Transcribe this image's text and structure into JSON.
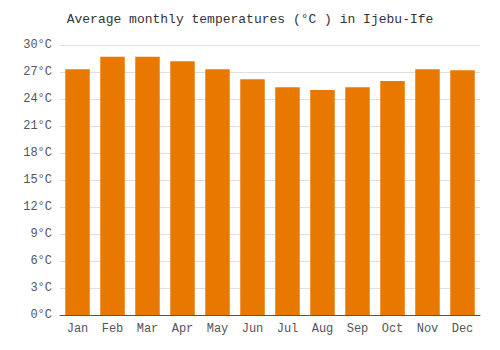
{
  "chart_data": {
    "type": "bar",
    "title": "Average monthly temperatures (°C ) in Ijebu-Ife",
    "categories": [
      "Jan",
      "Feb",
      "Mar",
      "Apr",
      "May",
      "Jun",
      "Jul",
      "Aug",
      "Sep",
      "Oct",
      "Nov",
      "Dec"
    ],
    "values": [
      27.3,
      28.7,
      28.7,
      28.2,
      27.3,
      26.2,
      25.3,
      25.0,
      25.3,
      26.0,
      27.3,
      27.2
    ],
    "color": "#E87800",
    "ylim": [
      0,
      30
    ],
    "yticks": [
      {
        "value": 0,
        "label": "0°C"
      },
      {
        "value": 3,
        "label": "3°C"
      },
      {
        "value": 6,
        "label": "6°C"
      },
      {
        "value": 9,
        "label": "9°C"
      },
      {
        "value": 12,
        "label": "12°C"
      },
      {
        "value": 15,
        "label": "15°C"
      },
      {
        "value": 18,
        "label": "18°C"
      },
      {
        "value": 21,
        "label": "21°C"
      },
      {
        "value": 24,
        "label": "24°C"
      },
      {
        "value": 27,
        "label": "27°C"
      },
      {
        "value": 30,
        "label": "30°C"
      }
    ],
    "grid": true
  }
}
